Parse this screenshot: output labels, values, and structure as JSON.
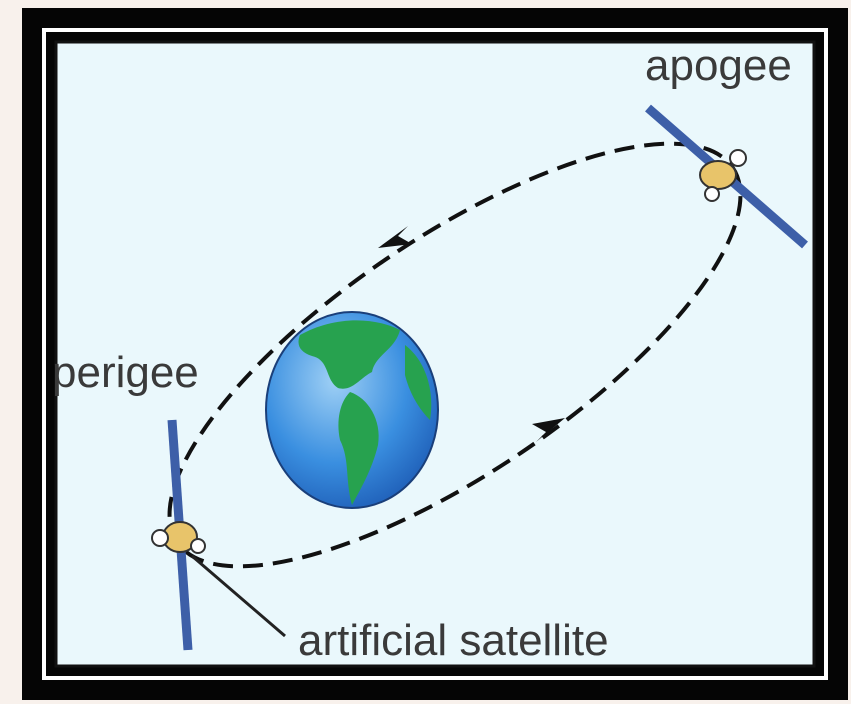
{
  "labels": {
    "apogee": "apogee",
    "perigee": "perigee",
    "satellite": "artificial satellite"
  }
}
